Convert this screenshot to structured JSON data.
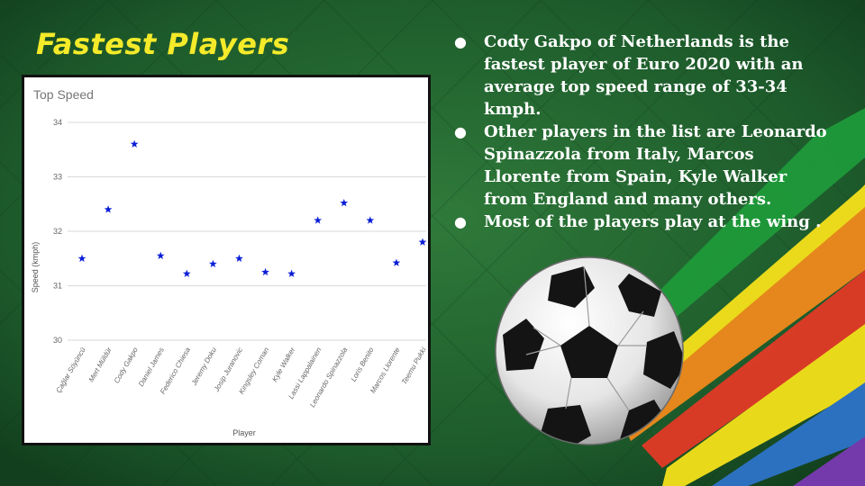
{
  "slide": {
    "title": "Fastest Players",
    "bullets": [
      "Cody Gakpo of Netherlands is the fastest player of Euro 2020 with an average top speed range of 33-34 kmph.",
      "Other players in the list are Leonardo Spinazzola from Italy, Marcos Llorente from Spain, Kyle Walker from England and many others.",
      "Most of the players play at the wing ."
    ],
    "bullet_glyph": "●"
  },
  "colors": {
    "title": "#f4ea2a",
    "background": "#1e5a2c",
    "marker": "#0b1fd6"
  },
  "icons": [
    "soccer-ball-icon"
  ],
  "chart_data": {
    "type": "scatter",
    "title": "Top Speed",
    "xlabel": "Player",
    "ylabel": "Speed (kmph)",
    "ylim": [
      30,
      34
    ],
    "yticks": [
      "30",
      "31",
      "32",
      "33",
      "34"
    ],
    "grid": true,
    "marker": "star",
    "categories": [
      "Çağlar Söyüncü",
      "Mert Müldür",
      "Cody Gakpo",
      "Daniel James",
      "Federico Chiesa",
      "Jeremy Doku",
      "Josip Juranovic",
      "Kingsley Coman",
      "Kyle Walker",
      "Lassi Lappalainen",
      "Leonardo Spinazzola",
      "Loris Benito",
      "Marcos Llorente",
      "Teemu Pukki"
    ],
    "values": [
      31.5,
      32.4,
      33.6,
      31.55,
      31.22,
      31.4,
      31.5,
      31.25,
      31.22,
      32.2,
      32.52,
      32.2,
      31.42,
      31.8
    ]
  }
}
